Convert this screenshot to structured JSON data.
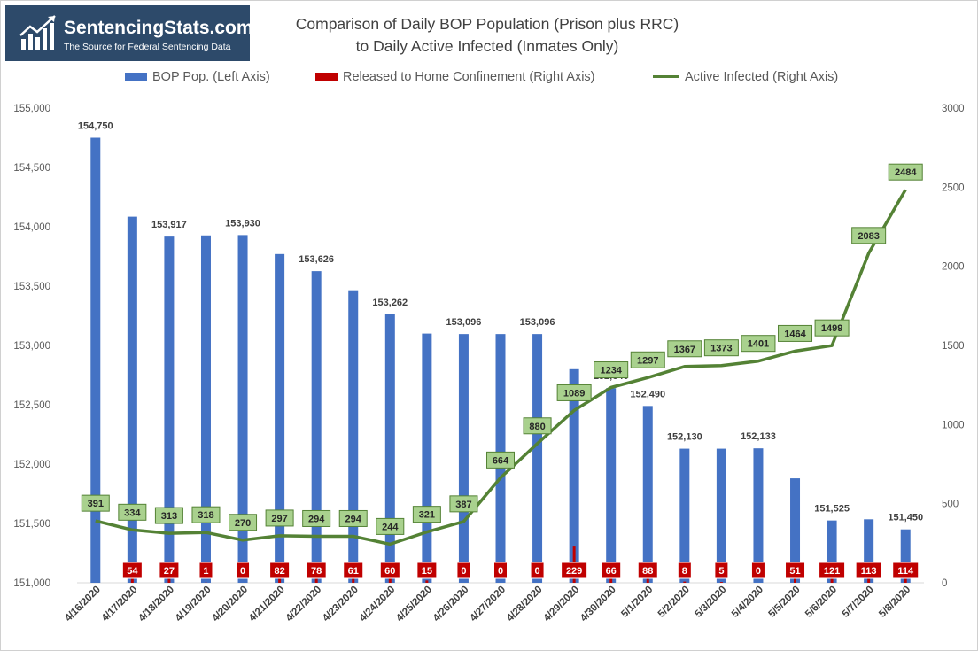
{
  "logo": {
    "name": "SentencingStats.com",
    "tagline": "The Source for Federal Sentencing Data"
  },
  "chart_data": {
    "type": "bar",
    "title_line1": "Comparison of Daily BOP Population (Prison plus RRC)",
    "title_line2": "to Daily Active Infected (Inmates Only)",
    "categories": [
      "4/16/2020",
      "4/17/2020",
      "4/18/2020",
      "4/19/2020",
      "4/20/2020",
      "4/21/2020",
      "4/22/2020",
      "4/23/2020",
      "4/24/2020",
      "4/25/2020",
      "4/26/2020",
      "4/27/2020",
      "4/28/2020",
      "4/29/2020",
      "4/30/2020",
      "5/1/2020",
      "5/2/2020",
      "5/3/2020",
      "5/4/2020",
      "5/5/2020",
      "5/6/2020",
      "5/7/2020",
      "5/8/2020"
    ],
    "left_axis": {
      "min": 151000,
      "max": 155000,
      "ticks": [
        "151,000",
        "151,500",
        "152,000",
        "152,500",
        "153,000",
        "153,500",
        "154,000",
        "154,500",
        "155,000"
      ]
    },
    "right_axis": {
      "min": 0,
      "max": 3000,
      "ticks": [
        "0",
        "500",
        "1000",
        "1500",
        "2000",
        "2500",
        "3000"
      ]
    },
    "series": [
      {
        "name": "BOP Pop. (Left Axis)",
        "kind": "bar",
        "axis": "left",
        "color": "#4472c4",
        "values": [
          154750,
          154085,
          153917,
          153927,
          153930,
          153770,
          153626,
          153465,
          153262,
          153100,
          153096,
          153096,
          153096,
          152800,
          152640,
          152490,
          152130,
          152130,
          152133,
          151880,
          151525,
          151535,
          151450
        ],
        "labels": [
          "154,750",
          "",
          "153,917",
          "",
          "153,930",
          "",
          "153,626",
          "",
          "153,262",
          "",
          "153,096",
          "",
          "153,096",
          "",
          "152,640",
          "152,490",
          "152,130",
          "",
          "152,133",
          "",
          "151,525",
          "",
          "151,450"
        ]
      },
      {
        "name": "Released to Home Confinement (Right Axis)",
        "kind": "bar",
        "axis": "right",
        "color": "#c00000",
        "values": [
          0,
          54,
          27,
          1,
          0,
          82,
          78,
          61,
          60,
          15,
          0,
          0,
          0,
          229,
          66,
          88,
          8,
          5,
          0,
          51,
          121,
          113,
          114
        ],
        "labels": [
          "",
          "54",
          "27",
          "1",
          "0",
          "82",
          "78",
          "61",
          "60",
          "15",
          "0",
          "0",
          "0",
          "229",
          "66",
          "88",
          "8",
          "5",
          "0",
          "51",
          "121",
          "113",
          "114"
        ]
      },
      {
        "name": "Active Infected (Right Axis)",
        "kind": "line",
        "axis": "right",
        "color": "#548235",
        "values": [
          391,
          334,
          313,
          318,
          270,
          297,
          294,
          294,
          244,
          321,
          387,
          664,
          880,
          1089,
          1234,
          1297,
          1367,
          1373,
          1401,
          1464,
          1499,
          2083,
          2484
        ]
      }
    ],
    "legend_position": "top",
    "grid": false
  }
}
